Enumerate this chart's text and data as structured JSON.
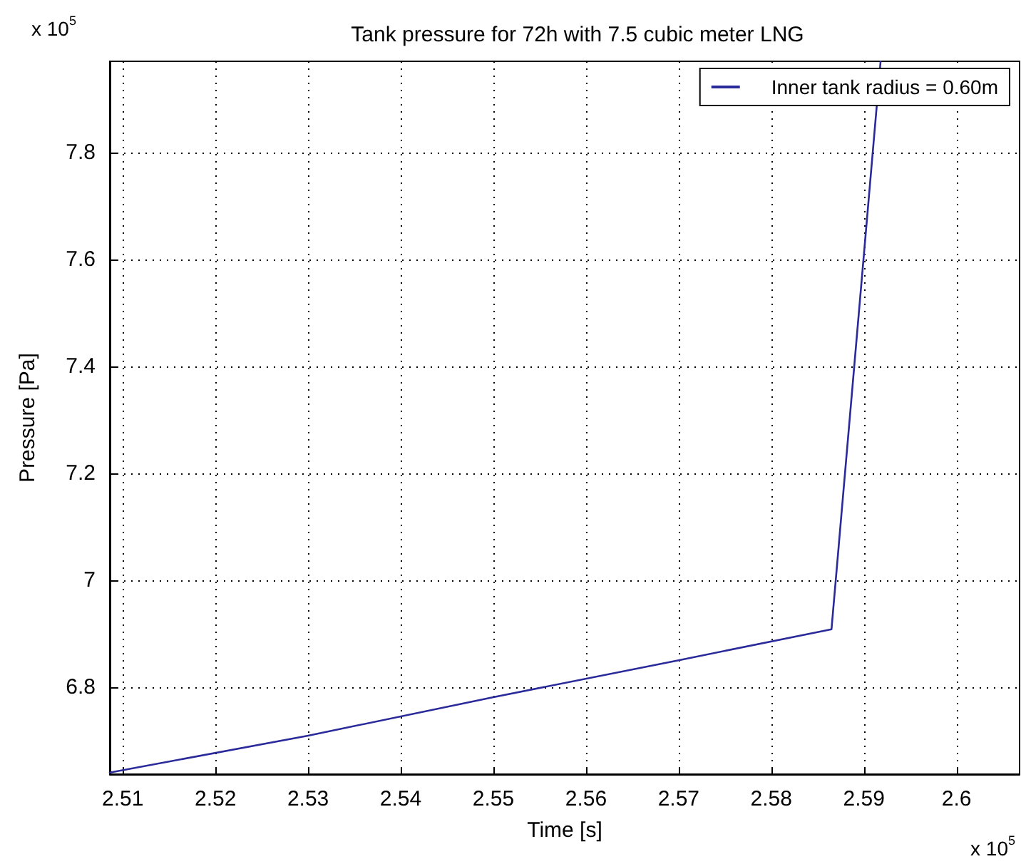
{
  "chart_data": {
    "type": "line",
    "title": "Tank pressure for 72h with 7.5 cubic meter LNG",
    "xlabel": "Time [s]",
    "ylabel": "Pressure [Pa]",
    "annotations": [
      "x 10$^{5}$",
      "x 10$^{5}$"
    ],
    "series": [
      {
        "name": "Inner tank radius = 0.60m",
        "color": "#2a2a9a",
        "x": [
          2.5086,
          2.53,
          2.55,
          2.57,
          2.5865,
          2.5918
        ],
        "values": [
          6.64,
          6.709,
          6.781,
          6.85,
          6.908,
          7.97
        ]
      }
    ],
    "xlim": [
      2.5086,
      2.6068
    ],
    "xticks": [
      2.51,
      2.52,
      2.53,
      2.54,
      2.55,
      2.56,
      2.57,
      2.58,
      2.59,
      2.6
    ],
    "ylim": [
      6.637,
      7.97
    ],
    "yticks": [
      6.8,
      7,
      7.2,
      7.4,
      7.6,
      7.8
    ],
    "grid": true,
    "legend": "top right",
    "line_style": "solid",
    "marker": "none"
  }
}
